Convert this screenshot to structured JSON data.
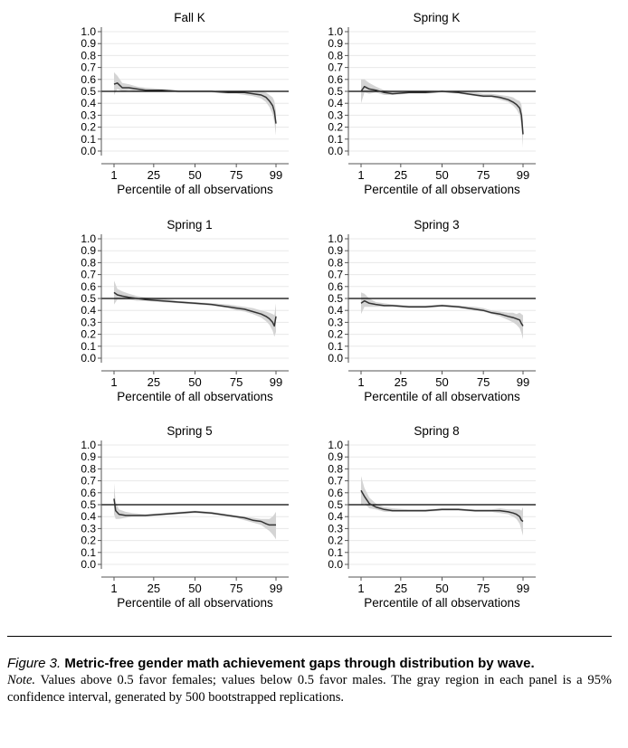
{
  "chart_data": [
    {
      "type": "line",
      "title": "Fall K",
      "xlabel": "Percentile of all observations",
      "ylabel": "",
      "x_ticks": [
        1,
        25,
        50,
        75,
        99
      ],
      "y_ticks": [
        "0.0",
        "0.1",
        "0.2",
        "0.3",
        "0.4",
        "0.5",
        "0.6",
        "0.7",
        "0.8",
        "0.9",
        "1.0"
      ],
      "xlim": [
        1,
        99
      ],
      "ylim": [
        0,
        1
      ],
      "reference_line": 0.5,
      "confidence_band": "95%",
      "x": [
        1,
        3,
        6,
        10,
        15,
        20,
        30,
        40,
        50,
        60,
        70,
        75,
        80,
        85,
        90,
        93,
        95,
        97,
        98,
        99
      ],
      "y": [
        0.56,
        0.57,
        0.53,
        0.53,
        0.52,
        0.51,
        0.51,
        0.5,
        0.5,
        0.5,
        0.49,
        0.49,
        0.49,
        0.48,
        0.47,
        0.45,
        0.42,
        0.38,
        0.33,
        0.23
      ],
      "lower": [
        0.47,
        0.52,
        0.5,
        0.51,
        0.5,
        0.5,
        0.5,
        0.49,
        0.49,
        0.49,
        0.48,
        0.48,
        0.47,
        0.46,
        0.44,
        0.41,
        0.37,
        0.31,
        0.24,
        0.13
      ],
      "upper": [
        0.66,
        0.63,
        0.57,
        0.56,
        0.54,
        0.53,
        0.52,
        0.51,
        0.51,
        0.51,
        0.5,
        0.5,
        0.5,
        0.5,
        0.5,
        0.49,
        0.47,
        0.45,
        0.42,
        0.33
      ]
    },
    {
      "type": "line",
      "title": "Spring K",
      "xlabel": "Percentile of all observations",
      "ylabel": "",
      "x_ticks": [
        1,
        25,
        50,
        75,
        99
      ],
      "y_ticks": [
        "0.0",
        "0.1",
        "0.2",
        "0.3",
        "0.4",
        "0.5",
        "0.6",
        "0.7",
        "0.8",
        "0.9",
        "1.0"
      ],
      "xlim": [
        1,
        99
      ],
      "ylim": [
        0,
        1
      ],
      "reference_line": 0.5,
      "confidence_band": "95%",
      "x": [
        1,
        3,
        6,
        10,
        15,
        20,
        30,
        40,
        50,
        60,
        70,
        75,
        80,
        85,
        90,
        93,
        95,
        97,
        98,
        99
      ],
      "y": [
        0.5,
        0.54,
        0.52,
        0.51,
        0.49,
        0.48,
        0.49,
        0.49,
        0.5,
        0.49,
        0.47,
        0.46,
        0.46,
        0.45,
        0.43,
        0.41,
        0.39,
        0.36,
        0.3,
        0.14
      ],
      "lower": [
        0.4,
        0.49,
        0.48,
        0.49,
        0.47,
        0.47,
        0.48,
        0.48,
        0.49,
        0.48,
        0.46,
        0.45,
        0.45,
        0.43,
        0.41,
        0.38,
        0.35,
        0.3,
        0.21,
        0.03
      ],
      "upper": [
        0.6,
        0.6,
        0.57,
        0.54,
        0.51,
        0.5,
        0.5,
        0.5,
        0.51,
        0.5,
        0.49,
        0.48,
        0.48,
        0.47,
        0.46,
        0.45,
        0.43,
        0.42,
        0.39,
        0.25
      ]
    },
    {
      "type": "line",
      "title": "Spring 1",
      "xlabel": "Percentile of all observations",
      "ylabel": "",
      "x_ticks": [
        1,
        25,
        50,
        75,
        99
      ],
      "y_ticks": [
        "0.0",
        "0.1",
        "0.2",
        "0.3",
        "0.4",
        "0.5",
        "0.6",
        "0.7",
        "0.8",
        "0.9",
        "1.0"
      ],
      "xlim": [
        1,
        99
      ],
      "ylim": [
        0,
        1
      ],
      "reference_line": 0.5,
      "confidence_band": "95%",
      "x": [
        1,
        3,
        6,
        10,
        15,
        20,
        30,
        40,
        50,
        60,
        70,
        75,
        80,
        85,
        90,
        93,
        95,
        97,
        98,
        99
      ],
      "y": [
        0.55,
        0.53,
        0.52,
        0.51,
        0.5,
        0.49,
        0.48,
        0.47,
        0.46,
        0.45,
        0.43,
        0.42,
        0.41,
        0.39,
        0.37,
        0.35,
        0.33,
        0.3,
        0.27,
        0.35
      ],
      "lower": [
        0.45,
        0.49,
        0.49,
        0.49,
        0.48,
        0.48,
        0.47,
        0.46,
        0.45,
        0.44,
        0.42,
        0.4,
        0.39,
        0.37,
        0.34,
        0.31,
        0.28,
        0.23,
        0.18,
        0.22
      ],
      "upper": [
        0.65,
        0.58,
        0.56,
        0.54,
        0.52,
        0.51,
        0.5,
        0.48,
        0.47,
        0.46,
        0.45,
        0.44,
        0.43,
        0.42,
        0.4,
        0.39,
        0.38,
        0.37,
        0.36,
        0.46
      ]
    },
    {
      "type": "line",
      "title": "Spring 3",
      "xlabel": "Percentile of all observations",
      "ylabel": "",
      "x_ticks": [
        1,
        25,
        50,
        75,
        99
      ],
      "y_ticks": [
        "0.0",
        "0.1",
        "0.2",
        "0.3",
        "0.4",
        "0.5",
        "0.6",
        "0.7",
        "0.8",
        "0.9",
        "1.0"
      ],
      "xlim": [
        1,
        99
      ],
      "ylim": [
        0,
        1
      ],
      "reference_line": 0.5,
      "confidence_band": "95%",
      "x": [
        1,
        3,
        6,
        10,
        15,
        20,
        30,
        40,
        50,
        60,
        70,
        75,
        80,
        85,
        90,
        93,
        95,
        97,
        98,
        99
      ],
      "y": [
        0.46,
        0.48,
        0.46,
        0.45,
        0.44,
        0.44,
        0.43,
        0.43,
        0.44,
        0.43,
        0.41,
        0.4,
        0.38,
        0.37,
        0.35,
        0.34,
        0.33,
        0.32,
        0.29,
        0.27
      ],
      "lower": [
        0.37,
        0.43,
        0.43,
        0.43,
        0.43,
        0.43,
        0.42,
        0.42,
        0.43,
        0.42,
        0.4,
        0.39,
        0.37,
        0.35,
        0.32,
        0.3,
        0.28,
        0.25,
        0.21,
        0.16
      ],
      "upper": [
        0.55,
        0.54,
        0.5,
        0.47,
        0.46,
        0.45,
        0.44,
        0.44,
        0.45,
        0.44,
        0.43,
        0.42,
        0.4,
        0.39,
        0.38,
        0.38,
        0.37,
        0.38,
        0.37,
        0.36
      ]
    },
    {
      "type": "line",
      "title": "Spring 5",
      "xlabel": "Percentile of all observations",
      "ylabel": "",
      "x_ticks": [
        1,
        25,
        50,
        75,
        99
      ],
      "y_ticks": [
        "0.0",
        "0.1",
        "0.2",
        "0.3",
        "0.4",
        "0.5",
        "0.6",
        "0.7",
        "0.8",
        "0.9",
        "1.0"
      ],
      "xlim": [
        1,
        99
      ],
      "ylim": [
        0,
        1
      ],
      "reference_line": 0.5,
      "confidence_band": "95%",
      "x": [
        1,
        2,
        4,
        8,
        12,
        20,
        30,
        40,
        50,
        60,
        70,
        75,
        80,
        85,
        90,
        93,
        95,
        97,
        98,
        99
      ],
      "y": [
        0.55,
        0.45,
        0.42,
        0.41,
        0.41,
        0.41,
        0.42,
        0.43,
        0.44,
        0.43,
        0.41,
        0.4,
        0.39,
        0.37,
        0.36,
        0.34,
        0.33,
        0.33,
        0.33,
        0.33
      ],
      "lower": [
        0.42,
        0.38,
        0.38,
        0.39,
        0.4,
        0.4,
        0.41,
        0.42,
        0.43,
        0.42,
        0.4,
        0.39,
        0.37,
        0.35,
        0.33,
        0.3,
        0.28,
        0.25,
        0.23,
        0.21
      ],
      "upper": [
        0.68,
        0.52,
        0.46,
        0.44,
        0.43,
        0.42,
        0.43,
        0.44,
        0.45,
        0.44,
        0.42,
        0.41,
        0.4,
        0.39,
        0.38,
        0.38,
        0.38,
        0.4,
        0.42,
        0.44
      ]
    },
    {
      "type": "line",
      "title": "Spring 8",
      "xlabel": "Percentile of all observations",
      "ylabel": "",
      "x_ticks": [
        1,
        25,
        50,
        75,
        99
      ],
      "y_ticks": [
        "0.0",
        "0.1",
        "0.2",
        "0.3",
        "0.4",
        "0.5",
        "0.6",
        "0.7",
        "0.8",
        "0.9",
        "1.0"
      ],
      "xlim": [
        1,
        99
      ],
      "ylim": [
        0,
        1
      ],
      "reference_line": 0.5,
      "confidence_band": "95%",
      "x": [
        1,
        3,
        6,
        10,
        15,
        20,
        30,
        40,
        50,
        60,
        70,
        75,
        80,
        85,
        90,
        93,
        95,
        97,
        98,
        99
      ],
      "y": [
        0.62,
        0.57,
        0.51,
        0.48,
        0.46,
        0.45,
        0.45,
        0.45,
        0.46,
        0.46,
        0.45,
        0.45,
        0.45,
        0.45,
        0.44,
        0.43,
        0.42,
        0.4,
        0.37,
        0.36
      ],
      "lower": [
        0.5,
        0.51,
        0.47,
        0.46,
        0.44,
        0.44,
        0.44,
        0.44,
        0.45,
        0.45,
        0.44,
        0.44,
        0.44,
        0.43,
        0.42,
        0.4,
        0.38,
        0.34,
        0.29,
        0.24
      ],
      "upper": [
        0.74,
        0.64,
        0.56,
        0.51,
        0.48,
        0.47,
        0.46,
        0.46,
        0.47,
        0.47,
        0.46,
        0.46,
        0.46,
        0.47,
        0.46,
        0.46,
        0.46,
        0.46,
        0.45,
        0.48
      ]
    }
  ],
  "caption": {
    "label": "Figure 3.",
    "title": "Metric-free gender math achievement gaps through distribution by wave.",
    "note_label": "Note.",
    "note_text": "Values above 0.5 favor females; values below 0.5 favor males. The gray region in each panel is a 95% confidence interval, generated by 500 bootstrapped replications."
  },
  "colors": {
    "line": "#333333",
    "band": "#d4d4d4",
    "grid": "#e8e8e8",
    "axis": "#555555",
    "reference": "#000000"
  }
}
